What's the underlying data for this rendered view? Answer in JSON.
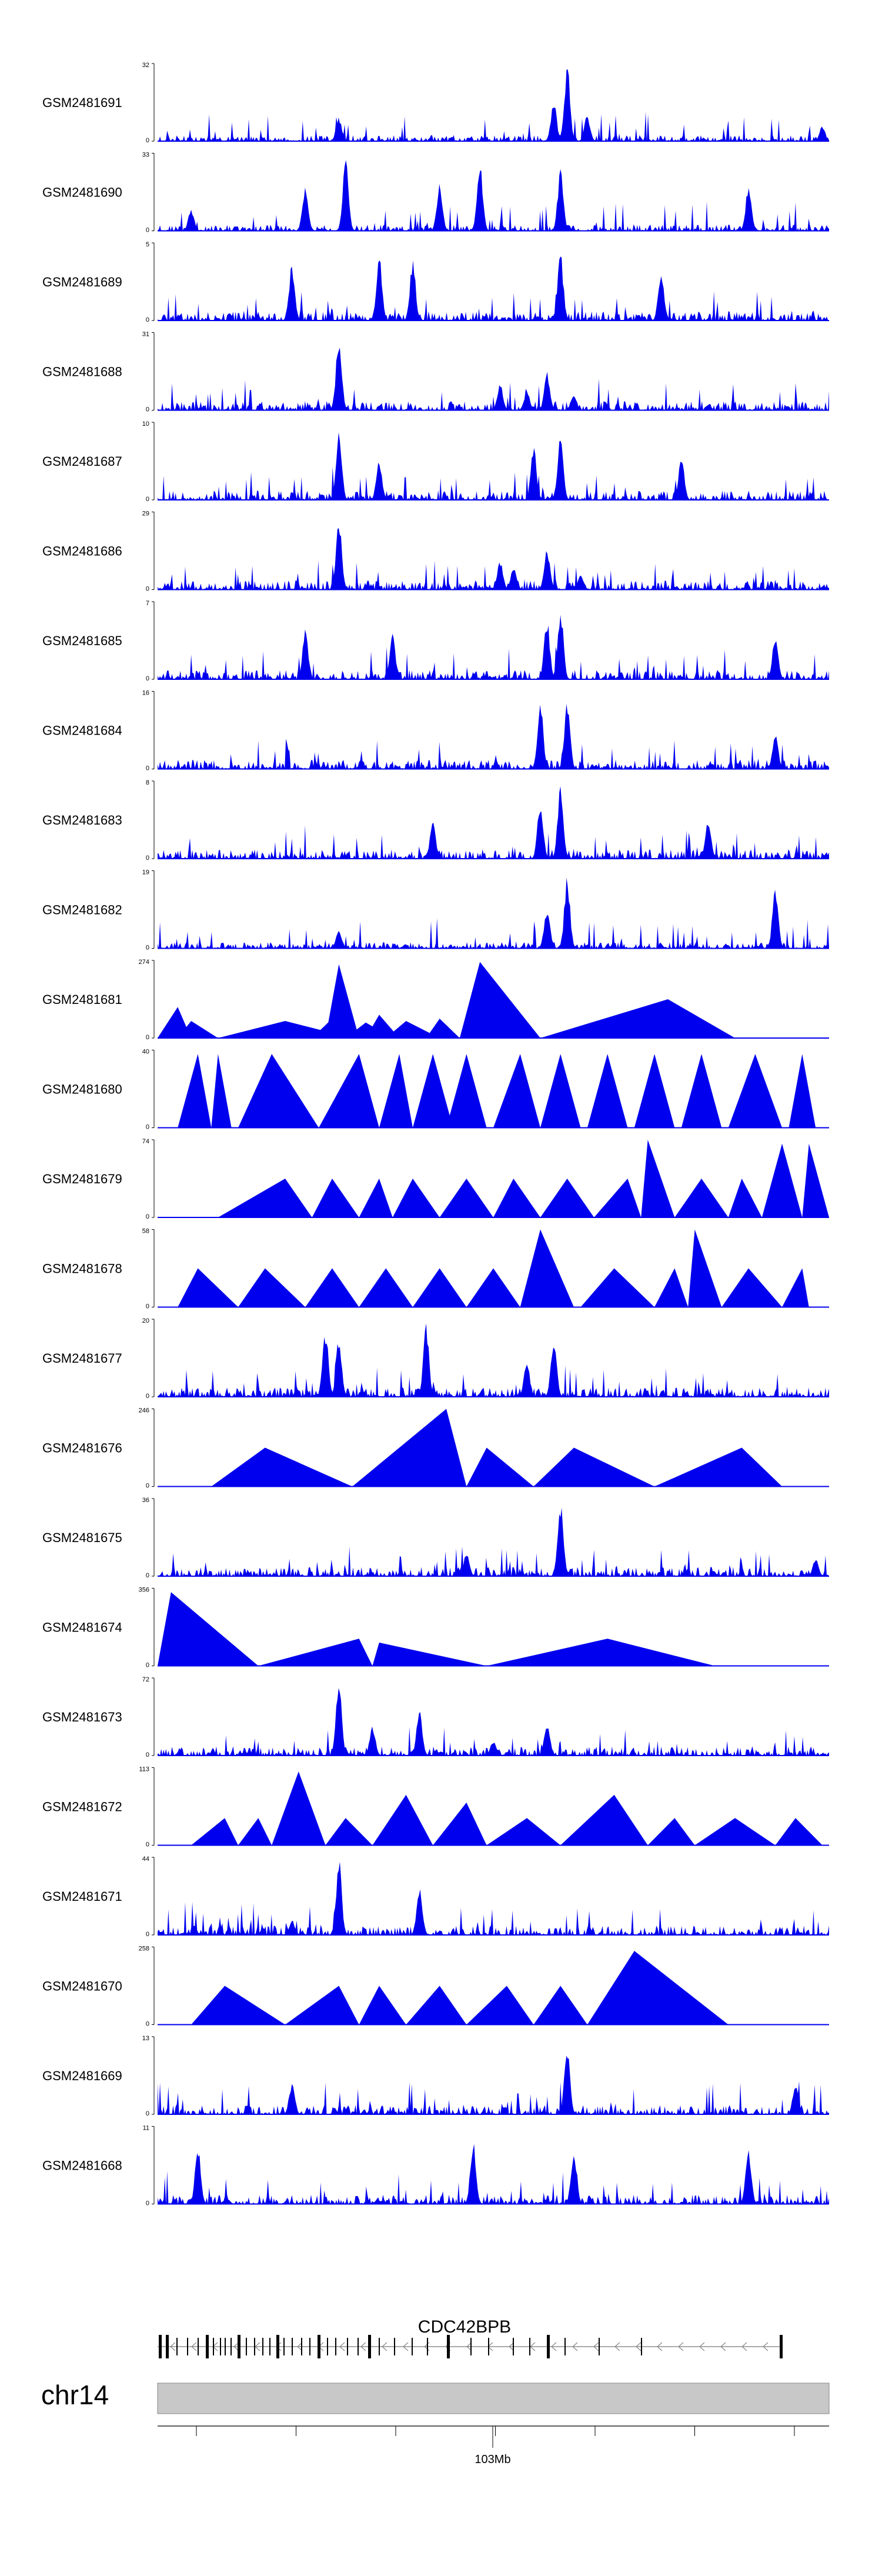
{
  "chart_data": {
    "type": "area",
    "title": "",
    "series_color": "#0000ee",
    "x_axis": {
      "chromosome": "chr14",
      "tick_label": "103Mb"
    },
    "gene": {
      "name": "CDC42BPB",
      "strand": "-"
    },
    "tracks": [
      {
        "name": "GSM2481691",
        "ymax": "32",
        "ymin": "0",
        "kind": "signal",
        "peaks": [
          [
            0.27,
            0.32
          ],
          [
            0.59,
            0.55
          ],
          [
            0.61,
            1.0
          ],
          [
            0.64,
            0.35
          ],
          [
            0.99,
            0.2
          ]
        ]
      },
      {
        "name": "GSM2481690",
        "ymax": "33",
        "ymin": "0",
        "kind": "signal",
        "peaks": [
          [
            0.05,
            0.3
          ],
          [
            0.22,
            0.6
          ],
          [
            0.28,
            0.95
          ],
          [
            0.42,
            0.65
          ],
          [
            0.48,
            0.9
          ],
          [
            0.6,
            0.8
          ],
          [
            0.88,
            0.6
          ]
        ]
      },
      {
        "name": "GSM2481689",
        "ymax": "5",
        "ymin": "0",
        "kind": "signal",
        "peaks": [
          [
            0.2,
            0.75
          ],
          [
            0.33,
            0.85
          ],
          [
            0.38,
            0.8
          ],
          [
            0.6,
            0.9
          ],
          [
            0.75,
            0.7
          ]
        ]
      },
      {
        "name": "GSM2481688",
        "ymax": "31",
        "ymin": "0",
        "kind": "signal",
        "peaks": [
          [
            0.27,
            1.0
          ],
          [
            0.51,
            0.35
          ],
          [
            0.55,
            0.25
          ],
          [
            0.58,
            0.5
          ],
          [
            0.62,
            0.2
          ]
        ]
      },
      {
        "name": "GSM2481687",
        "ymax": "10",
        "ymin": "0",
        "kind": "signal",
        "peaks": [
          [
            0.27,
            0.95
          ],
          [
            0.33,
            0.55
          ],
          [
            0.56,
            0.7
          ],
          [
            0.6,
            0.85
          ],
          [
            0.78,
            0.6
          ]
        ]
      },
      {
        "name": "GSM2481686",
        "ymax": "29",
        "ymin": "0",
        "kind": "signal",
        "peaks": [
          [
            0.27,
            0.95
          ],
          [
            0.51,
            0.4
          ],
          [
            0.53,
            0.3
          ],
          [
            0.58,
            0.55
          ],
          [
            0.63,
            0.2
          ]
        ]
      },
      {
        "name": "GSM2481685",
        "ymax": "7",
        "ymin": "0",
        "kind": "signal",
        "peaks": [
          [
            0.22,
            0.65
          ],
          [
            0.35,
            0.6
          ],
          [
            0.58,
            0.8
          ],
          [
            0.6,
            0.95
          ],
          [
            0.92,
            0.6
          ]
        ]
      },
      {
        "name": "GSM2481684",
        "ymax": "16",
        "ymin": "0",
        "kind": "signal",
        "peaks": [
          [
            0.57,
            0.95
          ],
          [
            0.61,
            0.95
          ],
          [
            0.92,
            0.45
          ]
        ]
      },
      {
        "name": "GSM2481683",
        "ymax": "8",
        "ymin": "0",
        "kind": "signal",
        "peaks": [
          [
            0.57,
            0.75
          ],
          [
            0.6,
            0.95
          ],
          [
            0.41,
            0.5
          ],
          [
            0.82,
            0.5
          ]
        ]
      },
      {
        "name": "GSM2481682",
        "ymax": "19",
        "ymin": "0",
        "kind": "signal",
        "peaks": [
          [
            0.58,
            0.55
          ],
          [
            0.61,
            0.95
          ],
          [
            0.92,
            0.85
          ],
          [
            0.27,
            0.25
          ]
        ]
      },
      {
        "name": "GSM2481681",
        "ymax": "274",
        "ymin": "0",
        "kind": "triangles",
        "shapes": [
          [
            0.0,
            0.03,
            0.05,
            0.4
          ],
          [
            0.03,
            0.05,
            0.09,
            0.22
          ],
          [
            0.09,
            0.19,
            0.29,
            0.22
          ],
          [
            0.23,
            0.26,
            0.29,
            0.25
          ],
          [
            0.25,
            0.27,
            0.3,
            0.95
          ],
          [
            0.28,
            0.31,
            0.35,
            0.2
          ],
          [
            0.31,
            0.33,
            0.36,
            0.3
          ],
          [
            0.34,
            0.37,
            0.42,
            0.22
          ],
          [
            0.4,
            0.42,
            0.45,
            0.25
          ],
          [
            0.45,
            0.48,
            0.57,
            0.98
          ],
          [
            0.57,
            0.76,
            0.86,
            0.5
          ]
        ]
      },
      {
        "name": "GSM2481680",
        "ymax": "40",
        "ymin": "0",
        "kind": "triangles",
        "shapes": [
          [
            0.03,
            0.06,
            0.08,
            0.95
          ],
          [
            0.08,
            0.09,
            0.11,
            0.95
          ],
          [
            0.12,
            0.17,
            0.24,
            0.95
          ],
          [
            0.24,
            0.3,
            0.33,
            0.95
          ],
          [
            0.33,
            0.36,
            0.38,
            0.95
          ],
          [
            0.38,
            0.41,
            0.44,
            0.95
          ],
          [
            0.43,
            0.46,
            0.49,
            0.95
          ],
          [
            0.5,
            0.54,
            0.57,
            0.95
          ],
          [
            0.57,
            0.6,
            0.63,
            0.95
          ],
          [
            0.64,
            0.67,
            0.7,
            0.95
          ],
          [
            0.71,
            0.74,
            0.77,
            0.95
          ],
          [
            0.78,
            0.81,
            0.84,
            0.95
          ],
          [
            0.85,
            0.89,
            0.93,
            0.95
          ],
          [
            0.94,
            0.96,
            0.98,
            0.95
          ]
        ]
      },
      {
        "name": "GSM2481679",
        "ymax": "74",
        "ymin": "0",
        "kind": "triangles",
        "shapes": [
          [
            0.09,
            0.19,
            0.23,
            0.5
          ],
          [
            0.23,
            0.26,
            0.3,
            0.5
          ],
          [
            0.3,
            0.33,
            0.35,
            0.5
          ],
          [
            0.35,
            0.38,
            0.42,
            0.5
          ],
          [
            0.42,
            0.46,
            0.5,
            0.5
          ],
          [
            0.5,
            0.53,
            0.57,
            0.5
          ],
          [
            0.57,
            0.61,
            0.65,
            0.5
          ],
          [
            0.65,
            0.7,
            0.72,
            0.5
          ],
          [
            0.72,
            0.73,
            0.77,
            1.0
          ],
          [
            0.77,
            0.81,
            0.85,
            0.5
          ],
          [
            0.85,
            0.87,
            0.9,
            0.5
          ],
          [
            0.9,
            0.93,
            0.96,
            0.95
          ],
          [
            0.96,
            0.97,
            1.0,
            0.95
          ]
        ]
      },
      {
        "name": "GSM2481678",
        "ymax": "58",
        "ymin": "0",
        "kind": "triangles",
        "shapes": [
          [
            0.03,
            0.06,
            0.12,
            0.5
          ],
          [
            0.12,
            0.16,
            0.22,
            0.5
          ],
          [
            0.22,
            0.26,
            0.3,
            0.5
          ],
          [
            0.3,
            0.34,
            0.38,
            0.5
          ],
          [
            0.38,
            0.42,
            0.46,
            0.5
          ],
          [
            0.46,
            0.5,
            0.54,
            0.5
          ],
          [
            0.54,
            0.57,
            0.62,
            1.0
          ],
          [
            0.63,
            0.68,
            0.74,
            0.5
          ],
          [
            0.74,
            0.77,
            0.79,
            0.5
          ],
          [
            0.79,
            0.8,
            0.84,
            1.0
          ],
          [
            0.84,
            0.88,
            0.93,
            0.5
          ],
          [
            0.93,
            0.96,
            0.97,
            0.5
          ]
        ]
      },
      {
        "name": "GSM2481677",
        "ymax": "20",
        "ymin": "0",
        "kind": "signal",
        "peaks": [
          [
            0.25,
            0.9
          ],
          [
            0.27,
            0.8
          ],
          [
            0.4,
            0.95
          ],
          [
            0.55,
            0.5
          ],
          [
            0.59,
            0.8
          ]
        ]
      },
      {
        "name": "GSM2481676",
        "ymax": "246",
        "ymin": "0",
        "kind": "triangles",
        "shapes": [
          [
            0.08,
            0.16,
            0.29,
            0.5
          ],
          [
            0.29,
            0.43,
            0.46,
            1.0
          ],
          [
            0.46,
            0.49,
            0.56,
            0.5
          ],
          [
            0.56,
            0.62,
            0.74,
            0.5
          ],
          [
            0.74,
            0.87,
            0.93,
            0.5
          ]
        ]
      },
      {
        "name": "GSM2481675",
        "ymax": "36",
        "ymin": "0",
        "kind": "signal",
        "peaks": [
          [
            0.6,
            1.0
          ],
          [
            0.46,
            0.3
          ],
          [
            0.98,
            0.25
          ]
        ]
      },
      {
        "name": "GSM2481674",
        "ymax": "356",
        "ymin": "0",
        "kind": "triangles",
        "shapes": [
          [
            0.0,
            0.02,
            0.15,
            0.95
          ],
          [
            0.15,
            0.3,
            0.32,
            0.35
          ],
          [
            0.32,
            0.33,
            0.49,
            0.3
          ],
          [
            0.49,
            0.67,
            0.83,
            0.35
          ]
        ]
      },
      {
        "name": "GSM2481673",
        "ymax": "72",
        "ymin": "0",
        "kind": "signal",
        "peaks": [
          [
            0.27,
            1.0
          ],
          [
            0.32,
            0.4
          ],
          [
            0.39,
            0.6
          ],
          [
            0.5,
            0.2
          ],
          [
            0.58,
            0.45
          ]
        ]
      },
      {
        "name": "GSM2481672",
        "ymax": "113",
        "ymin": "0",
        "kind": "triangles",
        "shapes": [
          [
            0.05,
            0.1,
            0.12,
            0.35
          ],
          [
            0.12,
            0.15,
            0.17,
            0.35
          ],
          [
            0.17,
            0.21,
            0.25,
            0.95
          ],
          [
            0.25,
            0.28,
            0.32,
            0.35
          ],
          [
            0.32,
            0.37,
            0.41,
            0.65
          ],
          [
            0.41,
            0.46,
            0.49,
            0.55
          ],
          [
            0.49,
            0.55,
            0.6,
            0.35
          ],
          [
            0.6,
            0.68,
            0.73,
            0.65
          ],
          [
            0.73,
            0.77,
            0.8,
            0.35
          ],
          [
            0.8,
            0.86,
            0.92,
            0.35
          ],
          [
            0.92,
            0.95,
            0.99,
            0.35
          ]
        ]
      },
      {
        "name": "GSM2481671",
        "ymax": "44",
        "ymin": "0",
        "kind": "signal",
        "peaks": [
          [
            0.27,
            1.0
          ],
          [
            0.39,
            0.65
          ],
          [
            0.2,
            0.2
          ]
        ]
      },
      {
        "name": "GSM2481670",
        "ymax": "258",
        "ymin": "0",
        "kind": "triangles",
        "shapes": [
          [
            0.05,
            0.1,
            0.19,
            0.5
          ],
          [
            0.19,
            0.27,
            0.3,
            0.5
          ],
          [
            0.3,
            0.33,
            0.37,
            0.5
          ],
          [
            0.37,
            0.42,
            0.46,
            0.5
          ],
          [
            0.46,
            0.52,
            0.56,
            0.5
          ],
          [
            0.56,
            0.6,
            0.64,
            0.5
          ],
          [
            0.64,
            0.71,
            0.85,
            0.95
          ]
        ]
      },
      {
        "name": "GSM2481669",
        "ymax": "13",
        "ymin": "0",
        "kind": "signal",
        "peaks": [
          [
            0.61,
            0.95
          ],
          [
            0.2,
            0.4
          ],
          [
            0.95,
            0.4
          ]
        ]
      },
      {
        "name": "GSM2481668",
        "ymax": "11",
        "ymin": "0",
        "kind": "signal",
        "peaks": [
          [
            0.06,
            0.75
          ],
          [
            0.47,
            0.85
          ],
          [
            0.62,
            0.75
          ],
          [
            0.88,
            0.75
          ]
        ]
      }
    ]
  }
}
